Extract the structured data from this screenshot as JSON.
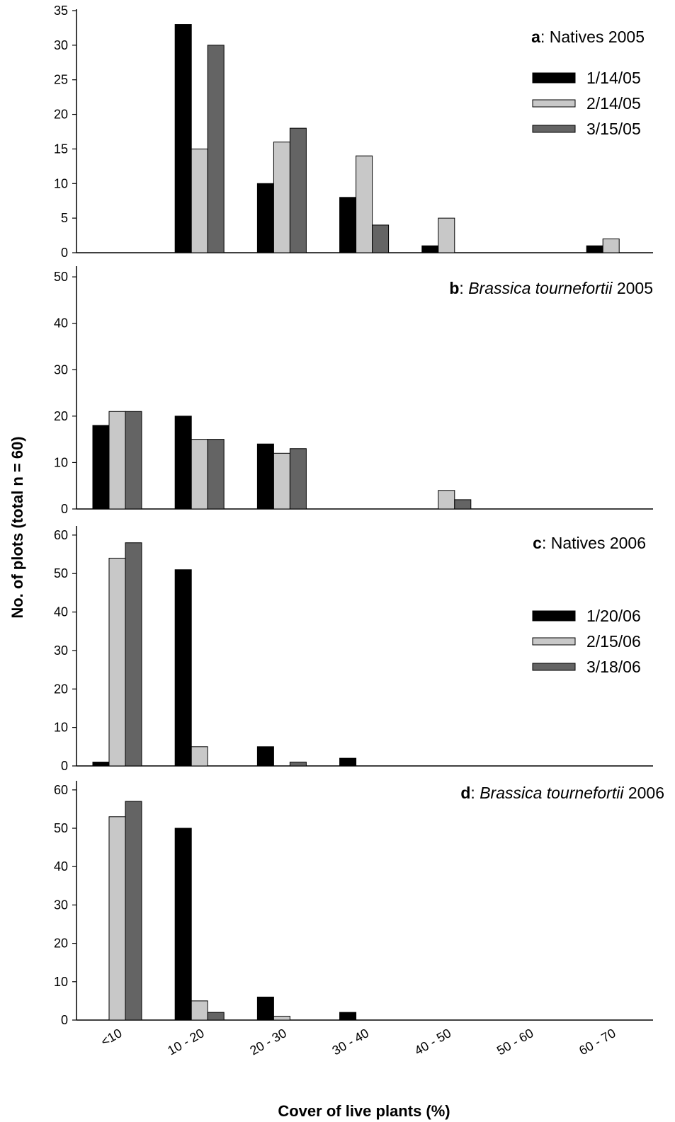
{
  "colors": {
    "series1": "#000000",
    "series2": "#c8c8c8",
    "series3": "#646464",
    "axis": "#000000"
  },
  "chart_data": {
    "type": "bar",
    "xlabel": "Cover of live plants (%)",
    "ylabel": "No. of plots (total n = 60)",
    "categories": [
      "<10",
      "10 - 20",
      "20 - 30",
      "30 - 40",
      "40 - 50",
      "50 - 60",
      "60 - 70"
    ],
    "panels": [
      {
        "title_bold": "a",
        "title_sep": ": ",
        "title_italic": "",
        "title_rest": "Natives 2005",
        "ylim": [
          0,
          35
        ],
        "yticks": [
          0,
          5,
          10,
          15,
          20,
          25,
          30,
          35
        ],
        "legend_placement": "top-right",
        "series": [
          {
            "name": "1/14/05",
            "values": [
              0,
              33,
              10,
              8,
              1,
              0,
              1
            ]
          },
          {
            "name": "2/14/05",
            "values": [
              0,
              15,
              16,
              14,
              5,
              0,
              2
            ]
          },
          {
            "name": "3/15/05",
            "values": [
              0,
              30,
              18,
              4,
              0,
              0,
              0
            ]
          }
        ]
      },
      {
        "title_bold": "b",
        "title_sep": ": ",
        "title_italic": "Brassica tournefortii",
        "title_rest": " 2005",
        "ylim": [
          0,
          52
        ],
        "yticks": [
          0,
          10,
          20,
          30,
          40,
          50
        ],
        "series": [
          {
            "values": [
              18,
              20,
              14,
              0,
              0,
              0,
              0
            ]
          },
          {
            "values": [
              21,
              15,
              12,
              0,
              4,
              0,
              0
            ]
          },
          {
            "values": [
              21,
              15,
              13,
              0,
              2,
              0,
              0
            ]
          }
        ]
      },
      {
        "title_bold": "c",
        "title_sep": ": ",
        "title_italic": "",
        "title_rest": "Natives 2006",
        "ylim": [
          0,
          62
        ],
        "yticks": [
          0,
          10,
          20,
          30,
          40,
          50,
          60
        ],
        "legend_placement": "top-right",
        "series": [
          {
            "name": "1/20/06",
            "values": [
              1,
              51,
              5,
              2,
              0,
              0,
              0
            ]
          },
          {
            "name": "2/15/06",
            "values": [
              54,
              5,
              0,
              0,
              0,
              0,
              0
            ]
          },
          {
            "name": "3/18/06",
            "values": [
              58,
              0,
              1,
              0,
              0,
              0,
              0
            ]
          }
        ]
      },
      {
        "title_bold": "d",
        "title_sep": ": ",
        "title_italic": "Brassica tournefortii",
        "title_rest": " 2006",
        "ylim": [
          0,
          62
        ],
        "yticks": [
          0,
          10,
          20,
          30,
          40,
          50,
          60
        ],
        "series": [
          {
            "values": [
              0,
              50,
              6,
              2,
              0,
              0,
              0
            ]
          },
          {
            "values": [
              53,
              5,
              1,
              0,
              0,
              0,
              0
            ]
          },
          {
            "values": [
              57,
              2,
              0,
              0,
              0,
              0,
              0
            ]
          }
        ]
      }
    ]
  }
}
